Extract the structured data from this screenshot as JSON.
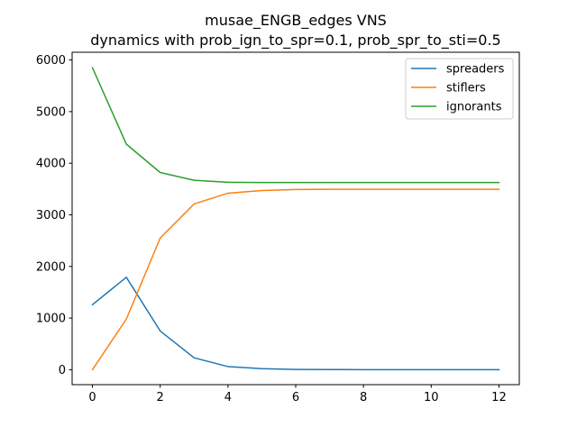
{
  "chart_data": {
    "type": "line",
    "title": "musae_ENGB_edges VNS",
    "subtitle": "dynamics with prob_ign_to_spr=0.1, prob_spr_to_sti=0.5",
    "xlabel": "",
    "ylabel": "",
    "xlim": [
      -0.6,
      12.6
    ],
    "ylim": [
      -290,
      6150
    ],
    "grid": false,
    "legend_position": "top-right",
    "x_ticks": [
      0,
      2,
      4,
      6,
      8,
      10,
      12
    ],
    "y_ticks": [
      0,
      1000,
      2000,
      3000,
      4000,
      5000,
      6000
    ],
    "x": [
      0,
      1,
      2,
      3,
      4,
      5,
      6,
      7,
      8,
      9,
      10,
      11,
      12
    ],
    "series": [
      {
        "name": "spreaders",
        "color": "#1f77b4",
        "values": [
          1260,
          1790,
          750,
          230,
          60,
          20,
          5,
          2,
          1,
          0,
          0,
          0,
          0
        ]
      },
      {
        "name": "stiflers",
        "color": "#ff7f0e",
        "values": [
          0,
          980,
          2550,
          3210,
          3420,
          3470,
          3490,
          3495,
          3495,
          3495,
          3495,
          3495,
          3495
        ]
      },
      {
        "name": "ignorants",
        "color": "#2ca02c",
        "values": [
          5850,
          4370,
          3820,
          3670,
          3630,
          3625,
          3625,
          3625,
          3625,
          3625,
          3625,
          3625,
          3625
        ]
      }
    ]
  }
}
